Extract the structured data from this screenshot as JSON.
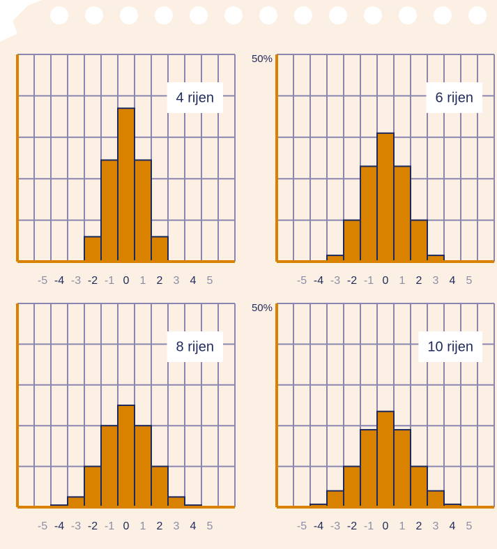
{
  "chart_data": [
    {
      "type": "bar",
      "title": "4 rijen",
      "x": [
        -5,
        -4,
        -3,
        -2,
        -1,
        0,
        1,
        2,
        3,
        4,
        5
      ],
      "values": [
        null,
        null,
        null,
        6,
        24.5,
        37,
        24.5,
        6,
        null,
        null,
        null
      ],
      "color": "#d98200",
      "edge_color": "#1f2a5c",
      "emphasized_x": [
        -4,
        -2,
        0,
        2,
        4
      ],
      "xlim": [
        -6.5,
        6.5
      ],
      "ylim": [
        0,
        50
      ],
      "ygrid": [
        10,
        20,
        30,
        40,
        50
      ],
      "yticks": []
    },
    {
      "type": "bar",
      "title": "6 rijen",
      "x": [
        -5,
        -4,
        -3,
        -2,
        -1,
        0,
        1,
        2,
        3,
        4,
        5
      ],
      "values": [
        null,
        null,
        1.5,
        10,
        23,
        31,
        23,
        10,
        1.5,
        null,
        null
      ],
      "color": "#d98200",
      "edge_color": "#1f2a5c",
      "emphasized_x": [
        -4,
        -2,
        0,
        2,
        4
      ],
      "xlim": [
        -6.5,
        6.5
      ],
      "ylim": [
        0,
        50
      ],
      "ygrid": [
        10,
        20,
        30,
        40,
        50
      ],
      "yticks": [
        {
          "value": 50,
          "label": "50%"
        }
      ]
    },
    {
      "type": "bar",
      "title": "8 rijen",
      "x": [
        -5,
        -4,
        -3,
        -2,
        -1,
        0,
        1,
        2,
        3,
        4,
        5
      ],
      "values": [
        null,
        0.5,
        2.5,
        10,
        20,
        25,
        20,
        10,
        2.5,
        0.5,
        null
      ],
      "color": "#d98200",
      "edge_color": "#1f2a5c",
      "emphasized_x": [
        -4,
        -2,
        0,
        2,
        4
      ],
      "xlim": [
        -6.5,
        6.5
      ],
      "ylim": [
        0,
        50
      ],
      "ygrid": [
        10,
        20,
        30,
        40,
        50
      ],
      "yticks": []
    },
    {
      "type": "bar",
      "title": "10 rijen",
      "x": [
        -5,
        -4,
        -3,
        -2,
        -1,
        0,
        1,
        2,
        3,
        4,
        5
      ],
      "values": [
        null,
        0.7,
        4,
        10,
        19,
        23.5,
        19,
        10,
        4,
        0.7,
        null
      ],
      "color": "#d98200",
      "edge_color": "#1f2a5c",
      "emphasized_x": [
        -4,
        -2,
        0,
        2,
        4
      ],
      "xlim": [
        -6.5,
        6.5
      ],
      "ylim": [
        0,
        50
      ],
      "ygrid": [
        10,
        20,
        30,
        40,
        50
      ],
      "yticks": [
        {
          "value": 50,
          "label": "50%"
        }
      ]
    }
  ]
}
